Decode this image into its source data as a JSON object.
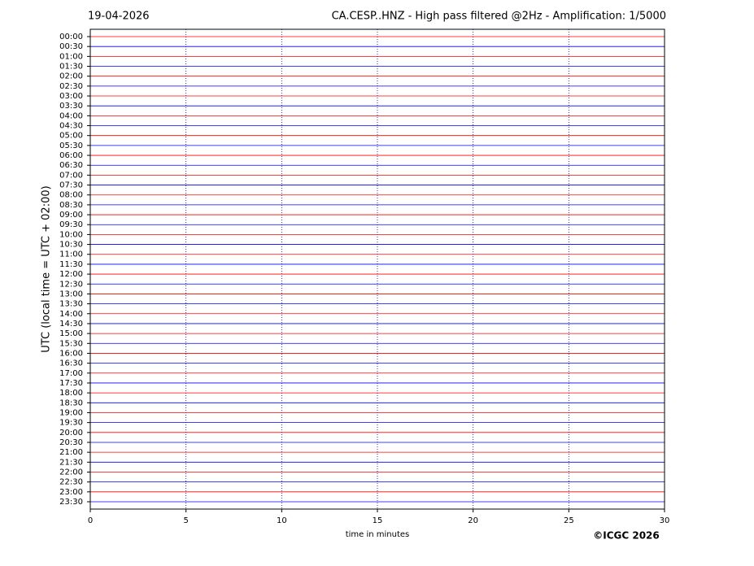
{
  "chart_data": {
    "type": "helicorder",
    "date": "19-04-2026",
    "title": "CA.CESP..HNZ - High pass filtered @2Hz - Amplification: 1/5000",
    "y_label": "UTC (local time = UTC + 02:00)",
    "x_label": "time in minutes",
    "credit": "©ICGC 2026",
    "categories": [
      "00:00",
      "00:30",
      "01:00",
      "01:30",
      "02:00",
      "02:30",
      "03:00",
      "03:30",
      "04:00",
      "04:30",
      "05:00",
      "05:30",
      "06:00",
      "06:30",
      "07:00",
      "07:30",
      "08:00",
      "08:30",
      "09:00",
      "09:30",
      "10:00",
      "10:30",
      "11:00",
      "11:30",
      "12:00",
      "12:30",
      "13:00",
      "13:30",
      "14:00",
      "14:30",
      "15:00",
      "15:30",
      "16:00",
      "16:30",
      "17:00",
      "17:30",
      "18:00",
      "18:30",
      "19:00",
      "19:30",
      "20:00",
      "20:30",
      "21:00",
      "21:30",
      "22:00",
      "22:30",
      "23:00",
      "23:30"
    ],
    "trace_colors": [
      "#ff0000",
      "#0000ff"
    ],
    "xlim": [
      0,
      30
    ],
    "xticks": [
      0,
      5,
      10,
      15,
      20,
      25,
      30
    ],
    "grid": true
  }
}
